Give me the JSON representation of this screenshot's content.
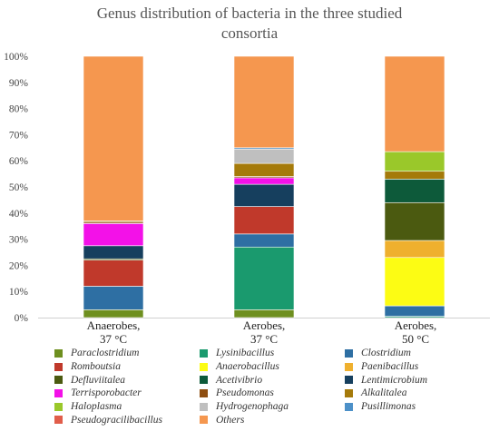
{
  "chart_data": {
    "type": "bar",
    "stacked": true,
    "title_line1": "Genus distribution of bacteria in the three studied",
    "title_line2": "consortia",
    "y_ticks": [
      "0%",
      "10%",
      "20%",
      "30%",
      "40%",
      "50%",
      "60%",
      "70%",
      "80%",
      "90%",
      "100%"
    ],
    "ylim": [
      0,
      100
    ],
    "grid": false,
    "legend_position": "bottom",
    "categories": [
      "Anaerobes, 37 °C",
      "Aerobes, 37 °C",
      "Aerobes, 50 °C"
    ],
    "category_lines": [
      [
        "Anaerobes,",
        "37 °C"
      ],
      [
        "Aerobes,",
        "37 °C"
      ],
      [
        "Aerobes,",
        "50 °C"
      ]
    ],
    "series": [
      {
        "name": "Paraclostridium",
        "color": "#6e8f1f",
        "values": [
          3.0,
          3.0,
          0.0
        ]
      },
      {
        "name": "Lysinibacillus",
        "color": "#1a9a6e",
        "values": [
          0.0,
          24.0,
          0.5
        ]
      },
      {
        "name": "Clostridium",
        "color": "#2e6fa3",
        "values": [
          9.0,
          5.0,
          4.0
        ]
      },
      {
        "name": "Romboutsia",
        "color": "#c0392b",
        "values": [
          10.0,
          10.5,
          0.0
        ]
      },
      {
        "name": "Anaerobacillus",
        "color": "#fcfc14",
        "values": [
          0.0,
          0.0,
          18.5
        ]
      },
      {
        "name": "Paenibacillus",
        "color": "#efb02e",
        "values": [
          0.0,
          0.0,
          6.5
        ]
      },
      {
        "name": "Defluviitalea",
        "color": "#4b5a10",
        "values": [
          0.5,
          0.0,
          14.5
        ]
      },
      {
        "name": "Acetivibrio",
        "color": "#0d5a3a",
        "values": [
          0.0,
          0.0,
          9.0
        ]
      },
      {
        "name": "Lentimicrobium",
        "color": "#163f5e",
        "values": [
          5.0,
          8.5,
          0.0
        ]
      },
      {
        "name": "Terrisporobacter",
        "color": "#f311e8",
        "values": [
          8.5,
          2.5,
          0.0
        ]
      },
      {
        "name": "Pseudomonas",
        "color": "#8e4e10",
        "values": [
          0.5,
          0.5,
          0.0
        ]
      },
      {
        "name": "Alkalitalea",
        "color": "#a57a0a",
        "values": [
          0.5,
          5.0,
          3.0
        ]
      },
      {
        "name": "Haloplasma",
        "color": "#9ac82a",
        "values": [
          0.0,
          0.0,
          7.5
        ]
      },
      {
        "name": "Hydrogenophaga",
        "color": "#bfbfbf",
        "values": [
          0.0,
          5.5,
          0.0
        ]
      },
      {
        "name": "Pusillimonas",
        "color": "#4c90c8",
        "values": [
          0.0,
          0.5,
          0.0
        ]
      },
      {
        "name": "Pseudogracilibacillus",
        "color": "#e15d4a",
        "values": [
          0.0,
          0.0,
          0.0
        ]
      },
      {
        "name": "Others",
        "color": "#f5974f",
        "values": [
          63.0,
          35.0,
          36.5
        ]
      }
    ]
  }
}
